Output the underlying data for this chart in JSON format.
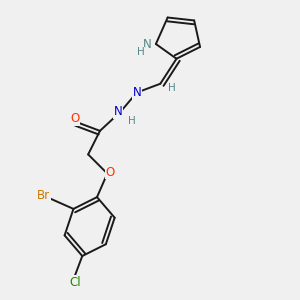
{
  "bg_color": "#efefef",
  "bond_color": "#1a1a1a",
  "bond_width": 1.4,
  "atom_colors": {
    "N": "#0000cc",
    "NH": "#558888",
    "O": "#ff3300",
    "Br": "#cc7700",
    "Cl": "#228800",
    "H": "#558888"
  },
  "font_size": 8.5,
  "fig_bg": "#f0f0f0"
}
